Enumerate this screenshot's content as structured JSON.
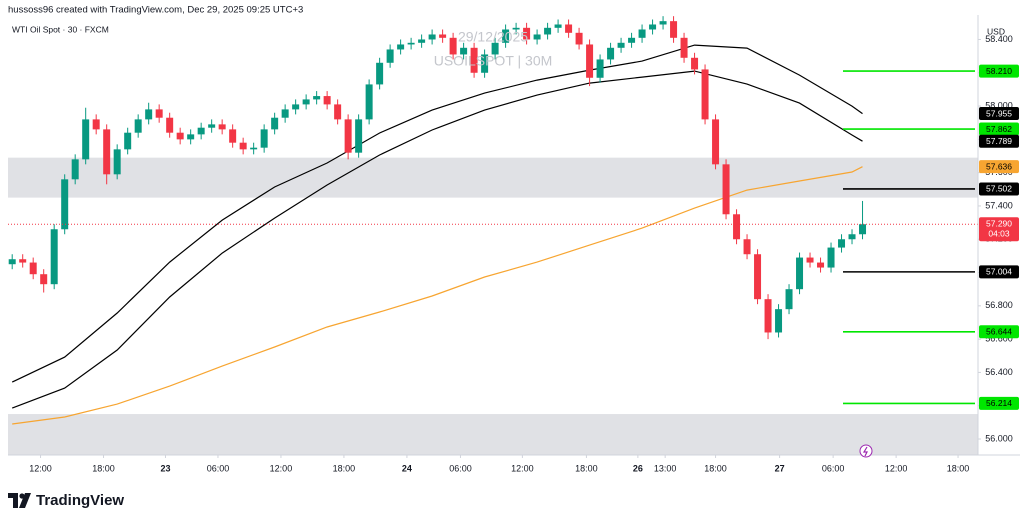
{
  "header": {
    "author": "hussoss96 created with TradingView.com, Dec 29, 2025 09:25 UTC+3",
    "symbol": "WTI Oil Spot · 30 · FXCM",
    "watermark_date": "29/12/2025",
    "watermark_symbol": "USOILSPOT | 30M",
    "currency": "USD",
    "brand": "TradingView"
  },
  "chart_data": {
    "type": "candlestick",
    "up_color": "#089981",
    "down_color": "#f23645",
    "open": [
      57.05,
      57.08,
      57.06,
      56.99,
      56.93,
      57.26,
      57.56,
      57.68,
      57.92,
      57.86,
      57.59,
      57.74,
      57.84,
      57.92,
      57.98,
      57.93,
      57.84,
      57.8,
      57.83,
      57.87,
      57.89,
      57.86,
      57.78,
      57.74,
      57.75,
      57.86,
      57.93,
      57.98,
      58.01,
      58.04,
      58.06,
      58.01,
      57.92,
      57.72,
      57.92,
      58.13,
      58.26,
      58.34,
      58.37,
      58.38,
      58.4,
      58.43,
      58.41,
      58.31,
      58.35,
      58.2,
      58.31,
      58.38,
      58.46,
      58.47,
      58.4,
      58.43,
      58.47,
      58.49,
      58.44,
      58.37,
      58.17,
      58.28,
      58.35,
      58.38,
      58.41,
      58.46,
      58.49,
      58.51,
      58.41,
      58.29,
      58.22,
      57.92,
      57.65,
      57.35,
      57.2,
      57.11,
      56.84,
      56.64,
      56.78,
      56.9,
      57.09,
      57.06,
      57.03,
      57.15,
      57.2,
      57.23
    ],
    "high": [
      57.11,
      57.11,
      57.09,
      57.02,
      57.29,
      57.59,
      57.71,
      57.99,
      57.95,
      57.89,
      57.77,
      57.87,
      57.95,
      58.02,
      58.01,
      57.96,
      57.87,
      57.86,
      57.9,
      57.92,
      57.92,
      57.89,
      57.81,
      57.78,
      57.89,
      57.96,
      58.01,
      58.04,
      58.07,
      58.09,
      58.09,
      58.04,
      57.95,
      57.95,
      58.16,
      58.29,
      58.37,
      58.4,
      58.41,
      58.43,
      58.46,
      58.46,
      58.44,
      58.38,
      58.38,
      58.34,
      58.41,
      58.49,
      58.5,
      58.5,
      58.46,
      58.5,
      58.52,
      58.52,
      58.47,
      58.4,
      58.31,
      58.38,
      58.41,
      58.44,
      58.49,
      58.52,
      58.54,
      58.54,
      58.44,
      58.32,
      58.25,
      57.95,
      57.68,
      57.38,
      57.23,
      57.14,
      56.87,
      56.81,
      56.93,
      57.12,
      57.12,
      57.09,
      57.18,
      57.23,
      57.26,
      57.43
    ],
    "low": [
      57.02,
      57.03,
      56.96,
      56.88,
      56.9,
      57.23,
      57.53,
      57.65,
      57.83,
      57.53,
      57.56,
      57.71,
      57.81,
      57.89,
      57.9,
      57.81,
      57.77,
      57.77,
      57.8,
      57.84,
      57.83,
      57.75,
      57.71,
      57.71,
      57.72,
      57.83,
      57.9,
      57.95,
      57.98,
      58.01,
      57.98,
      57.89,
      57.68,
      57.69,
      57.89,
      58.1,
      58.23,
      58.31,
      58.34,
      58.35,
      58.37,
      58.38,
      58.28,
      58.28,
      58.17,
      58.17,
      58.28,
      58.35,
      58.43,
      58.37,
      58.37,
      58.4,
      58.44,
      58.41,
      58.34,
      58.12,
      58.14,
      58.25,
      58.32,
      58.35,
      58.38,
      58.43,
      58.46,
      58.38,
      58.26,
      58.19,
      57.89,
      57.62,
      57.32,
      57.17,
      57.08,
      56.81,
      56.6,
      56.61,
      56.75,
      56.87,
      57.03,
      57.0,
      57.0,
      57.12,
      57.17,
      57.2
    ],
    "close": [
      57.08,
      57.06,
      56.99,
      56.93,
      57.26,
      57.56,
      57.68,
      57.92,
      57.86,
      57.59,
      57.74,
      57.84,
      57.92,
      57.98,
      57.93,
      57.84,
      57.8,
      57.83,
      57.87,
      57.89,
      57.86,
      57.78,
      57.74,
      57.75,
      57.86,
      57.93,
      57.98,
      58.01,
      58.04,
      58.06,
      58.01,
      57.92,
      57.72,
      57.92,
      58.13,
      58.26,
      58.34,
      58.37,
      58.38,
      58.4,
      58.43,
      58.41,
      58.31,
      58.35,
      58.2,
      58.31,
      58.38,
      58.46,
      58.47,
      58.4,
      58.43,
      58.47,
      58.49,
      58.44,
      58.37,
      58.17,
      58.28,
      58.35,
      58.38,
      58.41,
      58.46,
      58.49,
      58.51,
      58.41,
      58.29,
      58.22,
      57.92,
      57.65,
      57.35,
      57.2,
      57.11,
      56.84,
      56.64,
      56.78,
      56.9,
      57.09,
      57.06,
      57.03,
      57.15,
      57.2,
      57.23,
      57.29
    ],
    "lines": [
      {
        "color": "#000000",
        "x": [
          0,
          5,
          10,
          15,
          20,
          25,
          30,
          35,
          40,
          45,
          50,
          55,
          60,
          65,
          70,
          75,
          80,
          81
        ],
        "values": [
          56.342,
          56.492,
          56.757,
          57.063,
          57.315,
          57.514,
          57.658,
          57.838,
          57.976,
          58.078,
          58.156,
          58.216,
          58.27,
          58.366,
          58.348,
          58.186,
          58.0,
          57.955
        ]
      },
      {
        "color": "#000000",
        "x": [
          0,
          5,
          10,
          15,
          20,
          25,
          30,
          35,
          40,
          45,
          50,
          55,
          60,
          65,
          70,
          75,
          80,
          81
        ],
        "values": [
          56.186,
          56.306,
          56.535,
          56.853,
          57.117,
          57.327,
          57.526,
          57.706,
          57.856,
          57.976,
          58.066,
          58.138,
          58.174,
          58.21,
          58.132,
          58.018,
          57.826,
          57.789
        ]
      },
      {
        "color": "#f7a531",
        "x": [
          0,
          5,
          10,
          15,
          20,
          25,
          30,
          35,
          40,
          45,
          50,
          55,
          60,
          65,
          70,
          75,
          80,
          81
        ],
        "values": [
          56.09,
          56.132,
          56.21,
          56.318,
          56.438,
          56.553,
          56.673,
          56.763,
          56.859,
          56.973,
          57.063,
          57.165,
          57.267,
          57.387,
          57.495,
          57.55,
          57.604,
          57.636
        ]
      }
    ],
    "zones": [
      {
        "from": 57.45,
        "to": 57.69
      },
      {
        "from": 55.904,
        "to": 56.15
      }
    ],
    "zone_color": "#e0e1e5",
    "levels": [
      {
        "value": 58.21,
        "label": "58.210",
        "color": "#00e600",
        "text_color": "#000000",
        "line": true
      },
      {
        "value": 57.955,
        "label": "57.955",
        "color": "#000000",
        "text_color": "#ffffff",
        "line": false
      },
      {
        "value": 57.862,
        "label": "57.862",
        "color": "#00e600",
        "text_color": "#000000",
        "line": true
      },
      {
        "value": 57.789,
        "label": "57.789",
        "color": "#000000",
        "text_color": "#ffffff",
        "line": false
      },
      {
        "value": 57.636,
        "label": "57.636",
        "color": "#f7a531",
        "text_color": "#000000",
        "line": false
      },
      {
        "value": 57.502,
        "label": "57.502",
        "color": "#000000",
        "text_color": "#ffffff",
        "line": true
      },
      {
        "value": 57.004,
        "label": "57.004",
        "color": "#000000",
        "text_color": "#ffffff",
        "line": true
      },
      {
        "value": 56.644,
        "label": "56.644",
        "color": "#00e600",
        "text_color": "#000000",
        "line": true
      },
      {
        "value": 56.214,
        "label": "56.214",
        "color": "#00e600",
        "text_color": "#000000",
        "line": true
      }
    ],
    "current_price": {
      "value": 57.29,
      "label": "57.290",
      "countdown": "04:03",
      "color": "#f23645"
    },
    "xlim": [
      -0.4,
      92
    ],
    "ylim": [
      55.904,
      58.547
    ],
    "yticks": [
      {
        "value": 56,
        "label": "56.000"
      },
      {
        "value": 56.2,
        "label": "56.200"
      },
      {
        "value": 56.4,
        "label": "56.400"
      },
      {
        "value": 56.6,
        "label": "56.600"
      },
      {
        "value": 56.8,
        "label": "56.800"
      },
      {
        "value": 57,
        "label": "57.000"
      },
      {
        "value": 57.2,
        "label": "57.200"
      },
      {
        "value": 57.4,
        "label": "57.400"
      },
      {
        "value": 57.6,
        "label": "57.600"
      },
      {
        "value": 57.8,
        "label": "57.800"
      },
      {
        "value": 58,
        "label": "58.000"
      },
      {
        "value": 58.2,
        "label": "58.200"
      },
      {
        "value": 58.4,
        "label": "58.400"
      }
    ],
    "xticks": [
      {
        "value": 2.7,
        "label": "12:00"
      },
      {
        "value": 8.7,
        "label": "18:00"
      },
      {
        "value": 14.6,
        "label": "23"
      },
      {
        "value": 19.6,
        "label": "06:00"
      },
      {
        "value": 25.6,
        "label": "12:00"
      },
      {
        "value": 31.6,
        "label": "18:00"
      },
      {
        "value": 37.6,
        "label": "24"
      },
      {
        "value": 42.7,
        "label": "06:00"
      },
      {
        "value": 48.6,
        "label": "12:00"
      },
      {
        "value": 54.7,
        "label": "18:00"
      },
      {
        "value": 59.6,
        "label": "26"
      },
      {
        "value": 62.2,
        "label": "13:00"
      },
      {
        "value": 67.0,
        "label": "18:00"
      },
      {
        "value": 73.1,
        "label": "27"
      },
      {
        "value": 78.2,
        "label": "06:00"
      },
      {
        "value": 84.2,
        "label": "12:00"
      },
      {
        "value": 90.1,
        "label": "18:00"
      }
    ]
  }
}
